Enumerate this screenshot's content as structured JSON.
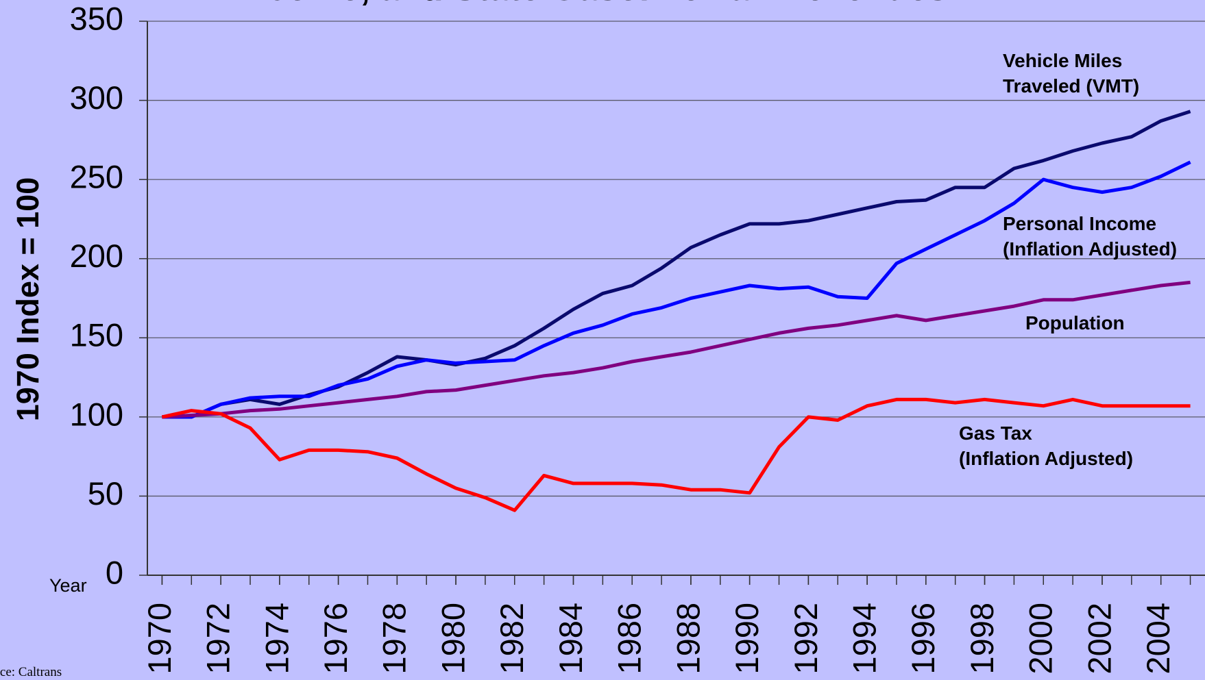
{
  "chart_data": {
    "type": "line",
    "title": "Income, and State Gasoline Tax Revenues",
    "ylabel": "1970 Index = 100",
    "xlabel": "Year",
    "source": "Source: Caltrans",
    "x": [
      1970,
      1971,
      1972,
      1973,
      1974,
      1975,
      1976,
      1977,
      1978,
      1979,
      1980,
      1981,
      1982,
      1983,
      1984,
      1985,
      1986,
      1987,
      1988,
      1989,
      1990,
      1991,
      1992,
      1993,
      1994,
      1995,
      1996,
      1997,
      1998,
      1999,
      2000,
      2001,
      2002,
      2003,
      2004,
      2005
    ],
    "series": [
      {
        "name": "Vehicle Miles\nTraveled (VMT)",
        "color": "#0a0a6e",
        "values": [
          100,
          100,
          108,
          111,
          108,
          114,
          119,
          128,
          138,
          136,
          133,
          137,
          145,
          156,
          168,
          178,
          183,
          194,
          207,
          215,
          222,
          222,
          224,
          228,
          232,
          236,
          237,
          245,
          245,
          257,
          262,
          268,
          273,
          277,
          287,
          293
        ]
      },
      {
        "name": "Personal Income\n(Inflation Adjusted)",
        "color": "#0000ff",
        "values": [
          100,
          100,
          108,
          112,
          113,
          113,
          120,
          124,
          132,
          136,
          134,
          135,
          136,
          145,
          153,
          158,
          165,
          169,
          175,
          179,
          183,
          181,
          182,
          176,
          175,
          197,
          206,
          215,
          224,
          235,
          250,
          245,
          242,
          245,
          252,
          261
        ]
      },
      {
        "name": "Population",
        "color": "#800080",
        "values": [
          100,
          101,
          102,
          104,
          105,
          107,
          109,
          111,
          113,
          116,
          117,
          120,
          123,
          126,
          128,
          131,
          135,
          138,
          141,
          145,
          149,
          153,
          156,
          158,
          161,
          164,
          161,
          164,
          167,
          170,
          174,
          174,
          177,
          180,
          183,
          185
        ]
      },
      {
        "name": "Gas Tax\n(Inflation Adjusted)",
        "color": "#ff0000",
        "values": [
          100,
          104,
          102,
          93,
          73,
          79,
          79,
          78,
          74,
          64,
          55,
          49,
          41,
          63,
          58,
          58,
          58,
          57,
          54,
          54,
          52,
          81,
          100,
          98,
          107,
          111,
          111,
          109,
          111,
          109,
          107,
          111,
          107,
          107,
          107,
          107
        ]
      }
    ],
    "xlim": [
      1969.5,
      2005.5
    ],
    "xticks": [
      1970,
      1972,
      1974,
      1976,
      1978,
      1980,
      1982,
      1984,
      1986,
      1988,
      1990,
      1992,
      1994,
      1996,
      1998,
      2000,
      2002,
      2004
    ],
    "ylim": [
      0,
      350
    ],
    "yticks": [
      0,
      50,
      100,
      150,
      200,
      250,
      300,
      350
    ],
    "grid": true,
    "background": "#c0c0ff"
  }
}
